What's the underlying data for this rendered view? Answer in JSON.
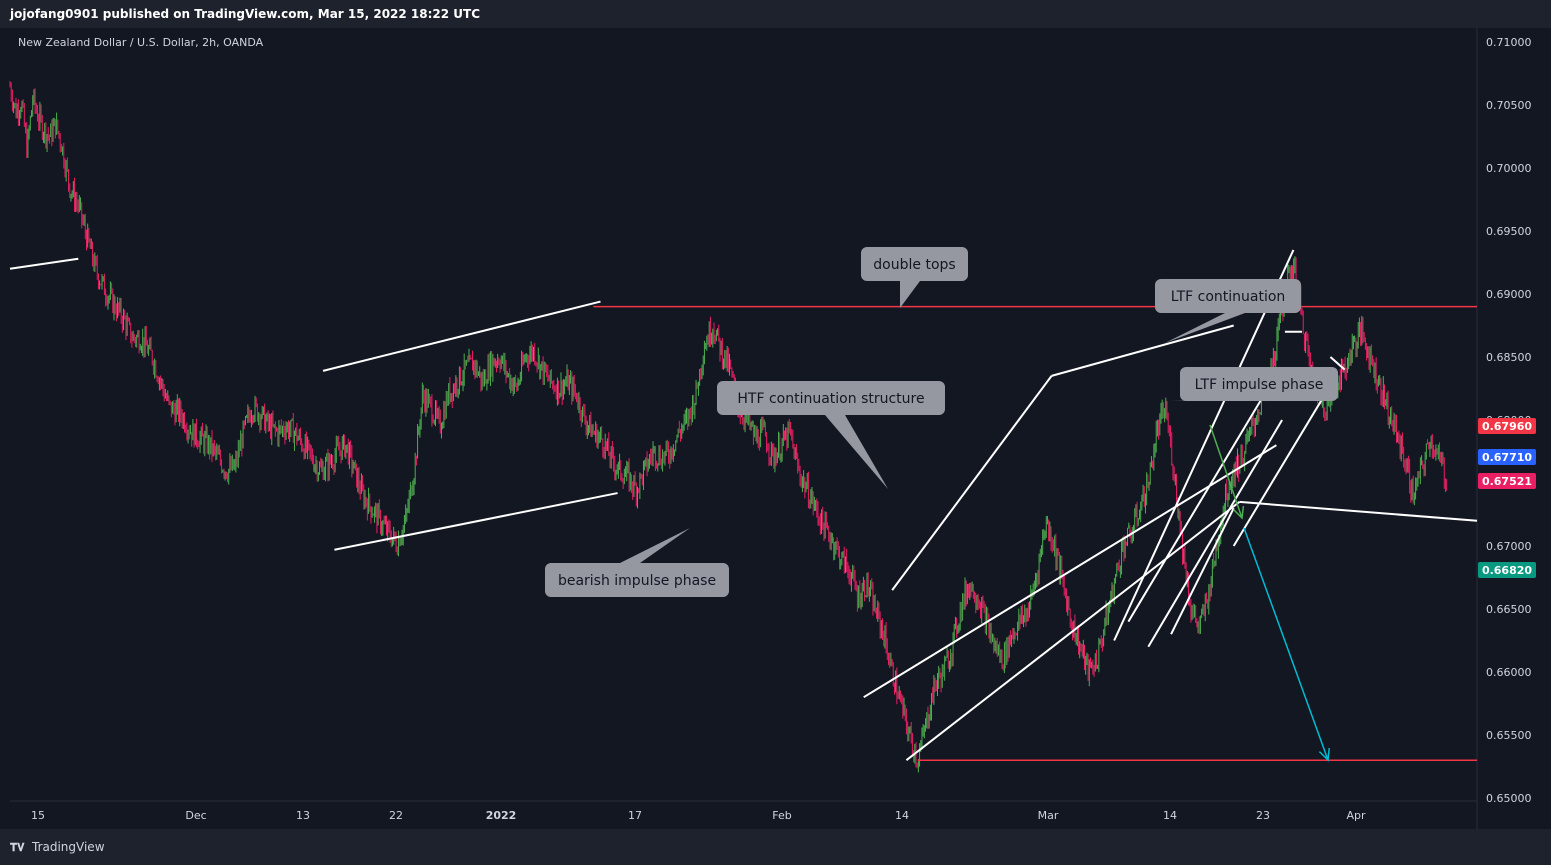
{
  "header": {
    "published": "jojofang0901 published on TradingView.com, Mar 15, 2022 18:22 UTC"
  },
  "footer": {
    "brand": "TradingView",
    "logo_icon": "tradingview-logo-icon"
  },
  "chart_data": {
    "type": "candlestick",
    "title": "New Zealand Dollar / U.S. Dollar, 2h, OANDA",
    "ylim": [
      0.65,
      0.71
    ],
    "y_ticks": [
      "0.71000",
      "0.70500",
      "0.70000",
      "0.69500",
      "0.69000",
      "0.68500",
      "0.68000",
      "0.67500",
      "0.67000",
      "0.66500",
      "0.66000",
      "0.65500",
      "0.65000"
    ],
    "x_ticks": [
      "15",
      "Dec",
      "13",
      "22",
      "2022",
      "17",
      "Feb",
      "14",
      "Mar",
      "14",
      "23",
      "Apr"
    ],
    "price_labels": [
      {
        "value": "0.67960",
        "price": 0.6796,
        "color": "#f23645"
      },
      {
        "value": "0.67710",
        "price": 0.6771,
        "color": "#2962ff"
      },
      {
        "value": "0.67521",
        "price": 0.6752,
        "color": "#e91e63"
      },
      {
        "value": "0.66820",
        "price": 0.6682,
        "color": "#089981"
      }
    ],
    "path": [
      [
        0,
        0.7065
      ],
      [
        0.02,
        0.7045
      ],
      [
        0.04,
        0.7052
      ],
      [
        0.06,
        0.7015
      ],
      [
        0.08,
        0.7055
      ],
      [
        0.1,
        0.704
      ],
      [
        0.12,
        0.703
      ],
      [
        0.14,
        0.7025
      ],
      [
        0.16,
        0.7035
      ],
      [
        0.18,
        0.702
      ],
      [
        0.21,
        0.6985
      ],
      [
        0.24,
        0.697
      ],
      [
        0.27,
        0.6945
      ],
      [
        0.3,
        0.692
      ],
      [
        0.33,
        0.6905
      ],
      [
        0.37,
        0.689
      ],
      [
        0.4,
        0.688
      ],
      [
        0.43,
        0.6865
      ],
      [
        0.46,
        0.6865
      ],
      [
        0.5,
        0.685
      ],
      [
        0.53,
        0.683
      ],
      [
        0.56,
        0.681
      ],
      [
        0.6,
        0.6805
      ],
      [
        0.64,
        0.679
      ],
      [
        0.67,
        0.6785
      ],
      [
        0.7,
        0.678
      ],
      [
        0.73,
        0.677
      ],
      [
        0.76,
        0.676
      ],
      [
        0.79,
        0.6762
      ],
      [
        0.82,
        0.679
      ],
      [
        0.85,
        0.681
      ],
      [
        0.88,
        0.6805
      ],
      [
        0.91,
        0.6795
      ],
      [
        0.94,
        0.679
      ],
      [
        0.97,
        0.6795
      ],
      [
        1.0,
        0.679
      ],
      [
        1.03,
        0.678
      ],
      [
        1.06,
        0.677
      ],
      [
        1.09,
        0.676
      ],
      [
        1.12,
        0.6765
      ],
      [
        1.15,
        0.6775
      ],
      [
        1.18,
        0.678
      ],
      [
        1.21,
        0.676
      ],
      [
        1.24,
        0.674
      ],
      [
        1.27,
        0.673
      ],
      [
        1.3,
        0.672
      ],
      [
        1.33,
        0.671
      ],
      [
        1.36,
        0.6702
      ],
      [
        1.39,
        0.672
      ],
      [
        1.42,
        0.676
      ],
      [
        1.45,
        0.682
      ],
      [
        1.48,
        0.681
      ],
      [
        1.51,
        0.6795
      ],
      [
        1.54,
        0.682
      ],
      [
        1.57,
        0.683
      ],
      [
        1.6,
        0.684
      ],
      [
        1.63,
        0.6845
      ],
      [
        1.66,
        0.683
      ],
      [
        1.69,
        0.6845
      ],
      [
        1.72,
        0.685
      ],
      [
        1.75,
        0.6835
      ],
      [
        1.78,
        0.6825
      ],
      [
        1.81,
        0.685
      ],
      [
        1.84,
        0.6855
      ],
      [
        1.87,
        0.684
      ],
      [
        1.9,
        0.683
      ],
      [
        1.93,
        0.6825
      ],
      [
        1.96,
        0.683
      ],
      [
        1.99,
        0.682
      ],
      [
        2.02,
        0.68
      ],
      [
        2.05,
        0.679
      ],
      [
        2.08,
        0.6785
      ],
      [
        2.11,
        0.677
      ],
      [
        2.14,
        0.676
      ],
      [
        2.17,
        0.6755
      ],
      [
        2.2,
        0.6745
      ],
      [
        2.23,
        0.676
      ],
      [
        2.26,
        0.6775
      ],
      [
        2.29,
        0.677
      ],
      [
        2.32,
        0.6775
      ],
      [
        2.35,
        0.679
      ],
      [
        2.38,
        0.68
      ],
      [
        2.41,
        0.682
      ],
      [
        2.44,
        0.686
      ],
      [
        2.47,
        0.6875
      ],
      [
        2.5,
        0.6855
      ],
      [
        2.53,
        0.684
      ],
      [
        2.56,
        0.681
      ],
      [
        2.59,
        0.68
      ],
      [
        2.62,
        0.6785
      ],
      [
        2.65,
        0.679
      ],
      [
        2.68,
        0.677
      ],
      [
        2.71,
        0.678
      ],
      [
        2.74,
        0.679
      ],
      [
        2.77,
        0.676
      ],
      [
        2.8,
        0.6745
      ],
      [
        2.83,
        0.673
      ],
      [
        2.86,
        0.6715
      ],
      [
        2.89,
        0.6705
      ],
      [
        2.92,
        0.669
      ],
      [
        2.95,
        0.668
      ],
      [
        2.98,
        0.666
      ],
      [
        3.01,
        0.667
      ],
      [
        3.04,
        0.665
      ],
      [
        3.07,
        0.663
      ],
      [
        3.1,
        0.66
      ],
      [
        3.13,
        0.6575
      ],
      [
        3.16,
        0.655
      ],
      [
        3.19,
        0.653
      ],
      [
        3.22,
        0.656
      ],
      [
        3.25,
        0.659
      ],
      [
        3.28,
        0.66
      ],
      [
        3.31,
        0.662
      ],
      [
        3.34,
        0.665
      ],
      [
        3.37,
        0.667
      ],
      [
        3.4,
        0.666
      ],
      [
        3.43,
        0.664
      ],
      [
        3.46,
        0.662
      ],
      [
        3.49,
        0.661
      ],
      [
        3.52,
        0.663
      ],
      [
        3.55,
        0.664
      ],
      [
        3.58,
        0.665
      ],
      [
        3.61,
        0.668
      ],
      [
        3.64,
        0.672
      ],
      [
        3.67,
        0.67
      ],
      [
        3.7,
        0.667
      ],
      [
        3.73,
        0.664
      ],
      [
        3.76,
        0.662
      ],
      [
        3.79,
        0.66
      ],
      [
        3.82,
        0.661
      ],
      [
        3.85,
        0.664
      ],
      [
        3.88,
        0.667
      ],
      [
        3.91,
        0.67
      ],
      [
        3.94,
        0.671
      ],
      [
        3.97,
        0.673
      ],
      [
        4.0,
        0.675
      ],
      [
        4.03,
        0.679
      ],
      [
        4.06,
        0.681
      ],
      [
        4.09,
        0.676
      ],
      [
        4.12,
        0.67
      ],
      [
        4.15,
        0.665
      ],
      [
        4.18,
        0.6635
      ],
      [
        4.21,
        0.666
      ],
      [
        4.24,
        0.67
      ],
      [
        4.27,
        0.674
      ],
      [
        4.3,
        0.676
      ],
      [
        4.33,
        0.677
      ],
      [
        4.36,
        0.679
      ],
      [
        4.39,
        0.681
      ],
      [
        4.42,
        0.683
      ],
      [
        4.45,
        0.686
      ],
      [
        4.48,
        0.69
      ],
      [
        4.51,
        0.6925
      ],
      [
        4.54,
        0.688
      ],
      [
        4.57,
        0.684
      ],
      [
        4.6,
        0.682
      ],
      [
        4.63,
        0.681
      ],
      [
        4.66,
        0.683
      ],
      [
        4.69,
        0.684
      ],
      [
        4.72,
        0.686
      ],
      [
        4.75,
        0.687
      ],
      [
        4.78,
        0.685
      ],
      [
        4.81,
        0.683
      ],
      [
        4.84,
        0.681
      ],
      [
        4.87,
        0.679
      ],
      [
        4.9,
        0.677
      ],
      [
        4.93,
        0.674
      ],
      [
        4.96,
        0.676
      ],
      [
        4.99,
        0.6785
      ],
      [
        5.02,
        0.677
      ],
      [
        5.05,
        0.6752
      ]
    ],
    "lines": [
      {
        "x1": 0.0,
        "y1": 0.692,
        "x2": 0.24,
        "y2": 0.6928,
        "color": "#ffffff"
      },
      {
        "x1": 1.1,
        "y1": 0.6839,
        "x2": 2.075,
        "y2": 0.6894,
        "color": "#ffffff"
      },
      {
        "x1": 1.14,
        "y1": 0.6697,
        "x2": 2.135,
        "y2": 0.6742,
        "color": "#ffffff"
      },
      {
        "x1": 2.05,
        "y1": 0.689,
        "x2": 5.155,
        "y2": 0.689,
        "color": "#f23645"
      },
      {
        "x1": 3.19,
        "y1": 0.653,
        "x2": 5.155,
        "y2": 0.653,
        "color": "#f23645"
      },
      {
        "x1": 3.15,
        "y1": 0.653,
        "x2": 4.32,
        "y2": 0.6735,
        "color": "#ffffff"
      },
      {
        "x1": 3.1,
        "y1": 0.6665,
        "x2": 3.66,
        "y2": 0.6835,
        "color": "#ffffff"
      },
      {
        "x1": 3.66,
        "y1": 0.6835,
        "x2": 4.3,
        "y2": 0.6875,
        "color": "#ffffff"
      },
      {
        "x1": 3.88,
        "y1": 0.6625,
        "x2": 4.51,
        "y2": 0.6935,
        "color": "#ffffff"
      },
      {
        "x1": 3.93,
        "y1": 0.664,
        "x2": 4.42,
        "y2": 0.6825,
        "color": "#ffffff"
      },
      {
        "x1": 4.0,
        "y1": 0.662,
        "x2": 4.47,
        "y2": 0.68,
        "color": "#ffffff"
      },
      {
        "x1": 3.0,
        "y1": 0.658,
        "x2": 4.45,
        "y2": 0.678,
        "color": "#ffffff"
      },
      {
        "x1": 4.3,
        "y1": 0.67,
        "x2": 4.62,
        "y2": 0.682,
        "color": "#ffffff"
      },
      {
        "x1": 4.48,
        "y1": 0.687,
        "x2": 4.54,
        "y2": 0.687,
        "color": "#ffffff"
      },
      {
        "x1": 4.64,
        "y1": 0.685,
        "x2": 4.69,
        "y2": 0.684,
        "color": "#ffffff"
      },
      {
        "x1": 4.32,
        "y1": 0.6735,
        "x2": 5.155,
        "y2": 0.672,
        "color": "#ffffff"
      },
      {
        "x1": 4.08,
        "y1": 0.663,
        "x2": 4.3,
        "y2": 0.673,
        "color": "#ffffff"
      }
    ],
    "callouts": [
      {
        "text": "double tops"
      },
      {
        "text": "LTF continuation"
      },
      {
        "text": "LTF impulse phase"
      },
      {
        "text": "HTF continuation structure"
      },
      {
        "text": "bearish impulse phase"
      }
    ],
    "projections": [
      {
        "color": "#4caf50"
      },
      {
        "color": "#00bcd4"
      }
    ],
    "up_color": "#089981",
    "down_color": "#f23645",
    "grid": false
  }
}
